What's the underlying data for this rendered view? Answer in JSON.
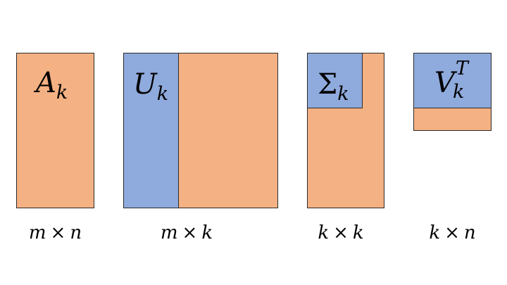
{
  "colors": {
    "orange": "#f4b183",
    "blue": "#8faadc",
    "border": "#2b2b2b"
  },
  "matrices": {
    "a": {
      "symbol": "A",
      "subscript": "k",
      "dims": {
        "rows": "m",
        "op": "×",
        "cols": "n"
      }
    },
    "u": {
      "symbol": "U",
      "subscript": "k",
      "dims": {
        "rows": "m",
        "op": "×",
        "cols": "k"
      }
    },
    "sigma": {
      "symbol": "Σ",
      "subscript": "k",
      "dims": {
        "rows": "k",
        "op": "×",
        "cols": "k"
      }
    },
    "v": {
      "symbol": "V",
      "subscript": "k",
      "superscript": "T",
      "dims": {
        "rows": "k",
        "op": "×",
        "cols": "n"
      }
    }
  }
}
